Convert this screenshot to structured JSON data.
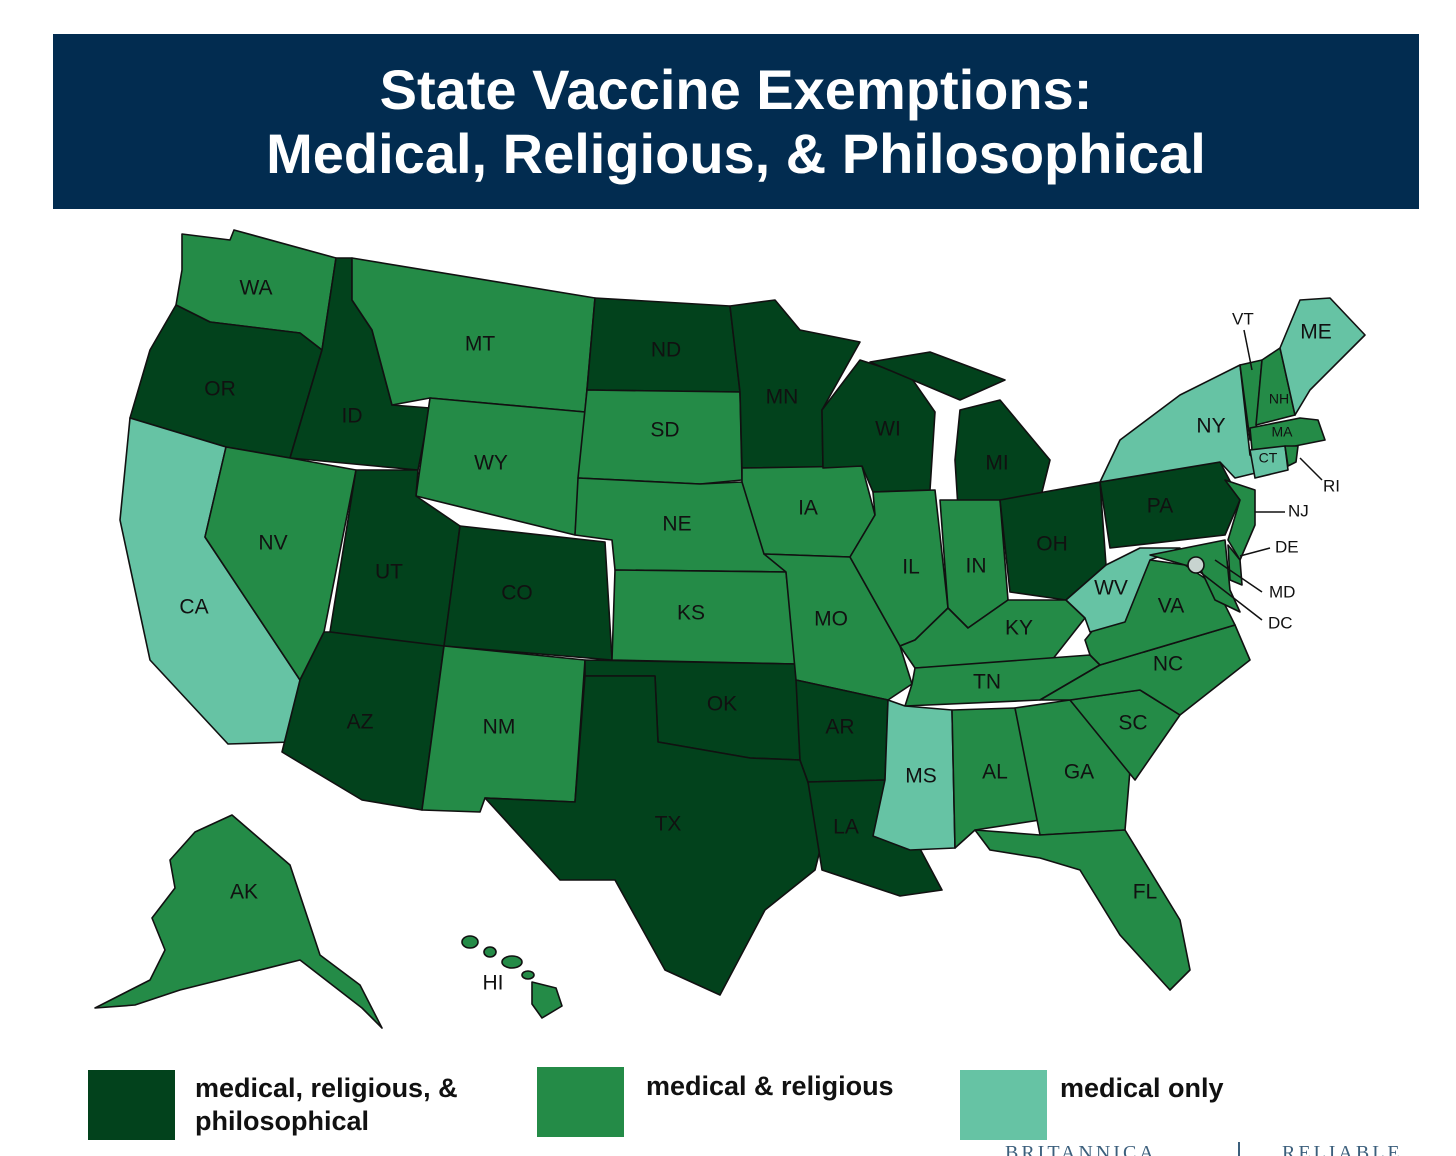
{
  "title": {
    "line1": "State Vaccine Exemptions:",
    "line2": "Medical, Religious, & Philosophical"
  },
  "colors": {
    "banner": "#022c50",
    "medical_religious_philosophical": "#02421c",
    "medical_religious": "#248b47",
    "medical_only": "#66c3a4",
    "dc": "#c8d4d0"
  },
  "legend": [
    {
      "key": "medical_religious_philosophical",
      "line1": "medical, religious, &",
      "line2": "philosophical"
    },
    {
      "key": "medical_religious",
      "line1": "medical & religious",
      "line2": ""
    },
    {
      "key": "medical_only",
      "line1": "medical only",
      "line2": ""
    }
  ],
  "states": {
    "WA": {
      "label": "WA",
      "category": "medical_religious"
    },
    "OR": {
      "label": "OR",
      "category": "medical_religious_philosophical"
    },
    "CA": {
      "label": "CA",
      "category": "medical_only"
    },
    "ID": {
      "label": "ID",
      "category": "medical_religious_philosophical"
    },
    "NV": {
      "label": "NV",
      "category": "medical_religious"
    },
    "MT": {
      "label": "MT",
      "category": "medical_religious"
    },
    "WY": {
      "label": "WY",
      "category": "medical_religious"
    },
    "UT": {
      "label": "UT",
      "category": "medical_religious_philosophical"
    },
    "CO": {
      "label": "CO",
      "category": "medical_religious_philosophical"
    },
    "AZ": {
      "label": "AZ",
      "category": "medical_religious_philosophical"
    },
    "NM": {
      "label": "NM",
      "category": "medical_religious"
    },
    "ND": {
      "label": "ND",
      "category": "medical_religious_philosophical"
    },
    "SD": {
      "label": "SD",
      "category": "medical_religious"
    },
    "NE": {
      "label": "NE",
      "category": "medical_religious"
    },
    "KS": {
      "label": "KS",
      "category": "medical_religious"
    },
    "OK": {
      "label": "OK",
      "category": "medical_religious_philosophical"
    },
    "TX": {
      "label": "TX",
      "category": "medical_religious_philosophical"
    },
    "MN": {
      "label": "MN",
      "category": "medical_religious_philosophical"
    },
    "IA": {
      "label": "IA",
      "category": "medical_religious"
    },
    "MO": {
      "label": "MO",
      "category": "medical_religious"
    },
    "AR": {
      "label": "AR",
      "category": "medical_religious_philosophical"
    },
    "LA": {
      "label": "LA",
      "category": "medical_religious_philosophical"
    },
    "WI": {
      "label": "WI",
      "category": "medical_religious_philosophical"
    },
    "IL": {
      "label": "IL",
      "category": "medical_religious"
    },
    "MI": {
      "label": "MI",
      "category": "medical_religious_philosophical"
    },
    "IN": {
      "label": "IN",
      "category": "medical_religious"
    },
    "OH": {
      "label": "OH",
      "category": "medical_religious_philosophical"
    },
    "KY": {
      "label": "KY",
      "category": "medical_religious"
    },
    "TN": {
      "label": "TN",
      "category": "medical_religious"
    },
    "MS": {
      "label": "MS",
      "category": "medical_only"
    },
    "AL": {
      "label": "AL",
      "category": "medical_religious"
    },
    "GA": {
      "label": "GA",
      "category": "medical_religious"
    },
    "FL": {
      "label": "FL",
      "category": "medical_religious"
    },
    "SC": {
      "label": "SC",
      "category": "medical_religious"
    },
    "NC": {
      "label": "NC",
      "category": "medical_religious"
    },
    "VA": {
      "label": "VA",
      "category": "medical_religious"
    },
    "WV": {
      "label": "WV",
      "category": "medical_only"
    },
    "PA": {
      "label": "PA",
      "category": "medical_religious_philosophical"
    },
    "NY": {
      "label": "NY",
      "category": "medical_only"
    },
    "VT": {
      "label": "VT",
      "category": "medical_religious"
    },
    "NH": {
      "label": "NH",
      "category": "medical_religious"
    },
    "ME": {
      "label": "ME",
      "category": "medical_only"
    },
    "MA": {
      "label": "MA",
      "category": "medical_religious"
    },
    "RI": {
      "label": "RI",
      "category": "medical_religious"
    },
    "CT": {
      "label": "CT",
      "category": "medical_only"
    },
    "NJ": {
      "label": "NJ",
      "category": "medical_religious"
    },
    "DE": {
      "label": "DE",
      "category": "medical_religious"
    },
    "MD": {
      "label": "MD",
      "category": "medical_religious"
    },
    "DC": {
      "label": "DC",
      "category": "dc"
    },
    "AK": {
      "label": "AK",
      "category": "medical_religious"
    },
    "HI": {
      "label": "HI",
      "category": "medical_religious"
    }
  },
  "footer": {
    "brand_left": "BRITANNICA",
    "brand_right": "RELIABLE"
  }
}
